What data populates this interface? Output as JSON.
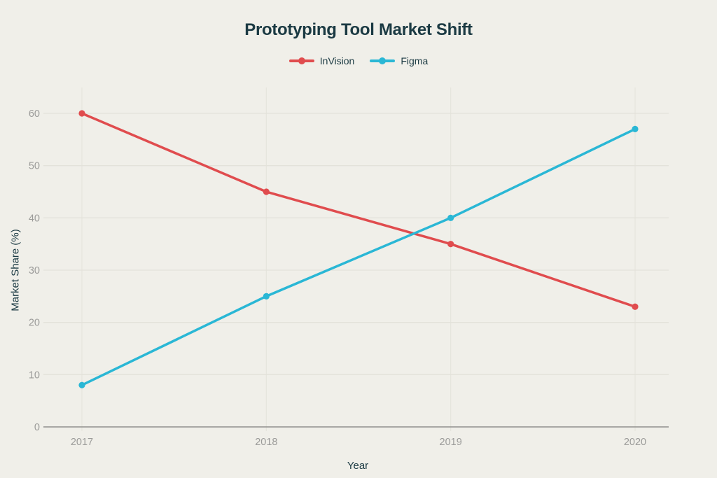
{
  "chart_data": {
    "type": "line",
    "title": "Prototyping Tool Market Shift",
    "xlabel": "Year",
    "ylabel": "Market Share (%)",
    "categories": [
      "2017",
      "2018",
      "2019",
      "2020"
    ],
    "series": [
      {
        "name": "InVision",
        "color": "#e04c4e",
        "values": [
          60,
          45,
          35,
          23
        ]
      },
      {
        "name": "Figma",
        "color": "#2ab7d5",
        "values": [
          8,
          25,
          40,
          57
        ]
      }
    ],
    "ylim": [
      0,
      60
    ],
    "yticks": [
      0,
      10,
      20,
      30,
      40,
      50,
      60
    ],
    "grid": true,
    "legend_position": "top",
    "marker": "circle"
  },
  "colors": {
    "background": "#f0efe9",
    "title_text": "#1b3a43",
    "tick_text": "#9b9b99",
    "gridline": "#e3e2da",
    "vertical_gridline": "#e6e5dd",
    "axis_line": "#8f8f8d",
    "invision": "#e04c4e",
    "figma": "#2ab7d5"
  }
}
